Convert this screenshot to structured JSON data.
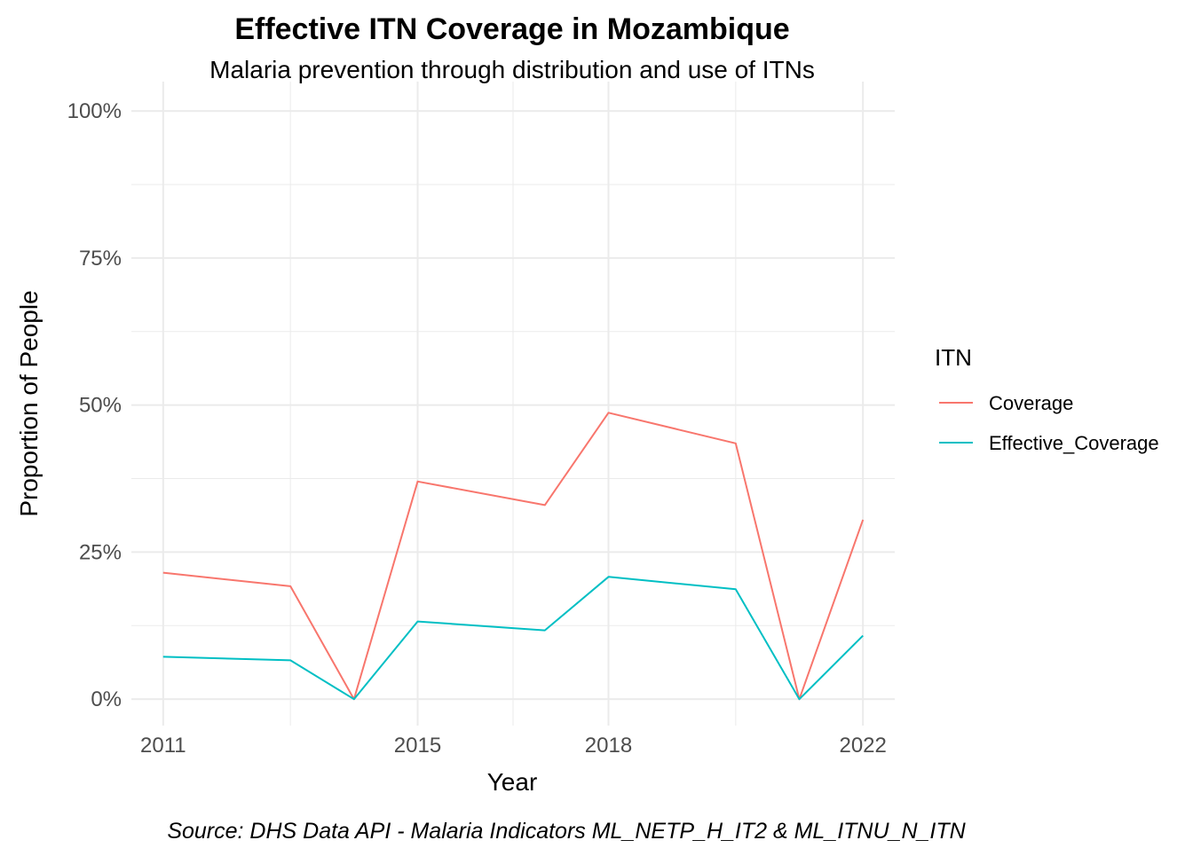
{
  "chart_data": {
    "type": "line",
    "title": "Effective ITN Coverage in Mozambique",
    "subtitle": "Malaria prevention through distribution and use of ITNs",
    "xlabel": "Year",
    "ylabel": "Proportion of People",
    "caption": "Source: DHS Data API - Malaria Indicators ML_NETP_H_IT2 & ML_ITNU_N_ITN",
    "x_ticks": [
      2011,
      2015,
      2018,
      2022
    ],
    "y_ticks": [
      0,
      0.25,
      0.5,
      0.75,
      1.0
    ],
    "y_tick_labels": [
      "0%",
      "25%",
      "50%",
      "75%",
      "100%"
    ],
    "xlim": [
      2010.5,
      2022.5
    ],
    "ylim": [
      -0.045,
      1.05
    ],
    "grid": true,
    "legend": {
      "title": "ITN",
      "position": "right"
    },
    "series": [
      {
        "name": "Coverage",
        "color": "#F8766D",
        "x": [
          2011,
          2013,
          2014,
          2015,
          2017,
          2018,
          2020,
          2021,
          2022
        ],
        "y": [
          0.215,
          0.192,
          0.0,
          0.37,
          0.33,
          0.487,
          0.435,
          0.0,
          0.305
        ]
      },
      {
        "name": "Effective_Coverage",
        "color": "#00BFC4",
        "x": [
          2011,
          2013,
          2014,
          2015,
          2017,
          2018,
          2020,
          2021,
          2022
        ],
        "y": [
          0.072,
          0.066,
          0.0,
          0.132,
          0.117,
          0.208,
          0.187,
          0.0,
          0.108
        ]
      }
    ]
  }
}
